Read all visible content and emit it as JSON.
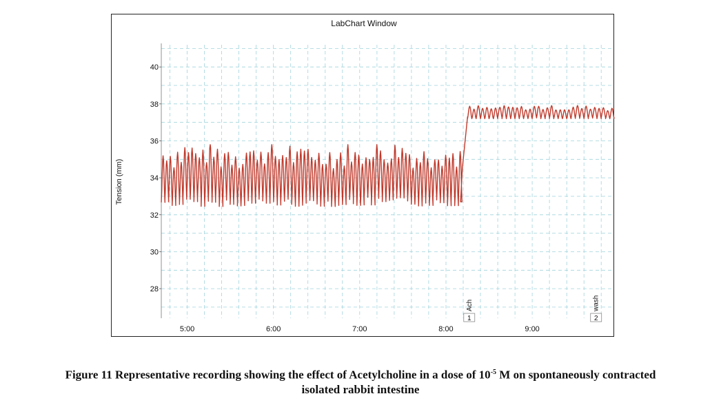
{
  "chart_data": {
    "type": "line",
    "title": "LabChart Window",
    "ylabel": "Tension (mm)",
    "xlabel": "",
    "ylim": [
      26.4,
      41.2
    ],
    "xlim": [
      4.7,
      9.95
    ],
    "y_ticks": [
      "28",
      "30",
      "32",
      "34",
      "36",
      "38",
      "40"
    ],
    "y_tick_values": [
      28,
      30,
      32,
      34,
      36,
      38,
      40
    ],
    "x_ticks": [
      "5:00",
      "6:00",
      "7:00",
      "8:00",
      "9:00"
    ],
    "x_tick_values": [
      5,
      6,
      7,
      8,
      9
    ],
    "x_unit": "min",
    "grid": true,
    "series": [
      {
        "color": "#c0392b",
        "segments": [
          {
            "pattern": "oscillation",
            "x_start": 4.7,
            "x_end": 8.17,
            "baseline": 34.0,
            "amplitude": 2.6,
            "min_value": 31.9,
            "max_value": 35.8,
            "period": 0.042
          },
          {
            "pattern": "step",
            "x_start": 8.17,
            "x_end": 8.25,
            "from_value": 32.7,
            "to_value": 37.3
          },
          {
            "pattern": "oscillation",
            "x_start": 8.25,
            "x_end": 9.95,
            "baseline": 37.5,
            "amplitude": 0.6,
            "min_value": 37.2,
            "max_value": 38.1,
            "period": 0.05
          }
        ]
      }
    ],
    "events": [
      {
        "label": "Ach",
        "number": "1",
        "x": 8.27
      },
      {
        "label": "wash",
        "number": "2",
        "x": 9.74
      }
    ]
  },
  "caption": {
    "line1_before": "Figure 11 Representative recording showing the effect of Acetylcholine in a dose of 10",
    "line1_sup": "-5",
    "line1_after": " M on spontaneously contracted",
    "line2": "isolated rabbit intestine"
  }
}
